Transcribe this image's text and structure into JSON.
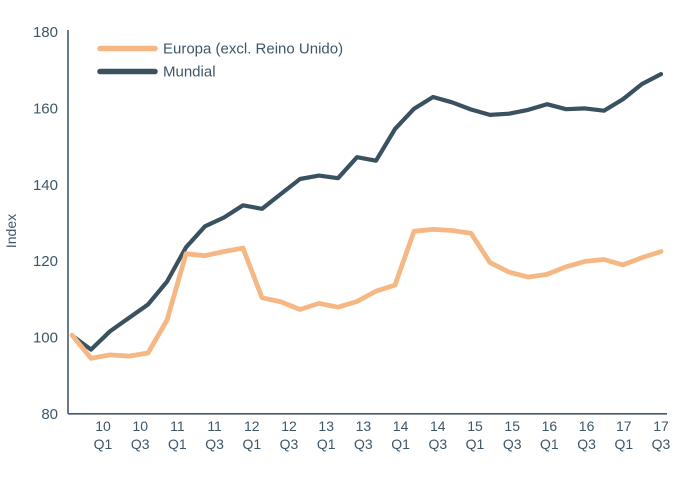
{
  "chart_data": {
    "type": "line",
    "title": "",
    "ylabel": "Index",
    "ylim": [
      80,
      180
    ],
    "yticks": [
      180,
      160,
      140,
      120,
      100,
      80
    ],
    "grid": false,
    "legend_position": "top-left",
    "colors": {
      "europa": "#F5B885",
      "mundial": "#3A5160",
      "axis": "#44596A",
      "text": "#3E5768"
    },
    "x_labels": [
      {
        "year": "10",
        "quarter": "Q1"
      },
      {
        "year": "10",
        "quarter": "Q3"
      },
      {
        "year": "11",
        "quarter": "Q1"
      },
      {
        "year": "11",
        "quarter": "Q3"
      },
      {
        "year": "12",
        "quarter": "Q1"
      },
      {
        "year": "12",
        "quarter": "Q3"
      },
      {
        "year": "13",
        "quarter": "Q1"
      },
      {
        "year": "13",
        "quarter": "Q3"
      },
      {
        "year": "14",
        "quarter": "Q1"
      },
      {
        "year": "14",
        "quarter": "Q3"
      },
      {
        "year": "15",
        "quarter": "Q1"
      },
      {
        "year": "15",
        "quarter": "Q3"
      },
      {
        "year": "16",
        "quarter": "Q1"
      },
      {
        "year": "16",
        "quarter": "Q3"
      },
      {
        "year": "17",
        "quarter": "Q1"
      },
      {
        "year": "17",
        "quarter": "Q3"
      }
    ],
    "periods": [
      "09 Q4",
      "10 Q1",
      "10 Q2",
      "10 Q3",
      "10 Q4",
      "11 Q1",
      "11 Q2",
      "11 Q3",
      "11 Q4",
      "12 Q1",
      "12 Q2",
      "12 Q3",
      "12 Q4",
      "13 Q1",
      "13 Q2",
      "13 Q3",
      "13 Q4",
      "14 Q1",
      "14 Q2",
      "14 Q3",
      "14 Q4",
      "15 Q1",
      "15 Q2",
      "15 Q3",
      "15 Q4",
      "16 Q1",
      "16 Q2",
      "16 Q3",
      "16 Q4",
      "17 Q1",
      "17 Q2",
      "17 Q3"
    ],
    "series": [
      {
        "name": "Europa (excl. Reino Unido)",
        "color": "#F5B885",
        "values": [
          100.5,
          94.4,
          95.3,
          95.0,
          95.8,
          104.4,
          121.8,
          121.3,
          122.4,
          123.3,
          110.3,
          109.2,
          107.2,
          108.8,
          107.8,
          109.3,
          112.0,
          113.6,
          127.7,
          128.2,
          127.9,
          127.2,
          119.5,
          117.0,
          115.7,
          116.4,
          118.4,
          119.8,
          120.3,
          118.9,
          120.8,
          122.4
        ]
      },
      {
        "name": "Mundial",
        "color": "#3A5160",
        "values": [
          100.4,
          96.7,
          101.5,
          105.0,
          108.5,
          114.5,
          123.5,
          129.0,
          131.3,
          134.5,
          133.6,
          137.5,
          141.4,
          142.3,
          141.6,
          147.1,
          146.2,
          154.5,
          159.8,
          162.9,
          161.5,
          159.6,
          158.2,
          158.5,
          159.5,
          161.0,
          159.7,
          159.9,
          159.3,
          162.3,
          166.3,
          168.9
        ]
      }
    ]
  }
}
